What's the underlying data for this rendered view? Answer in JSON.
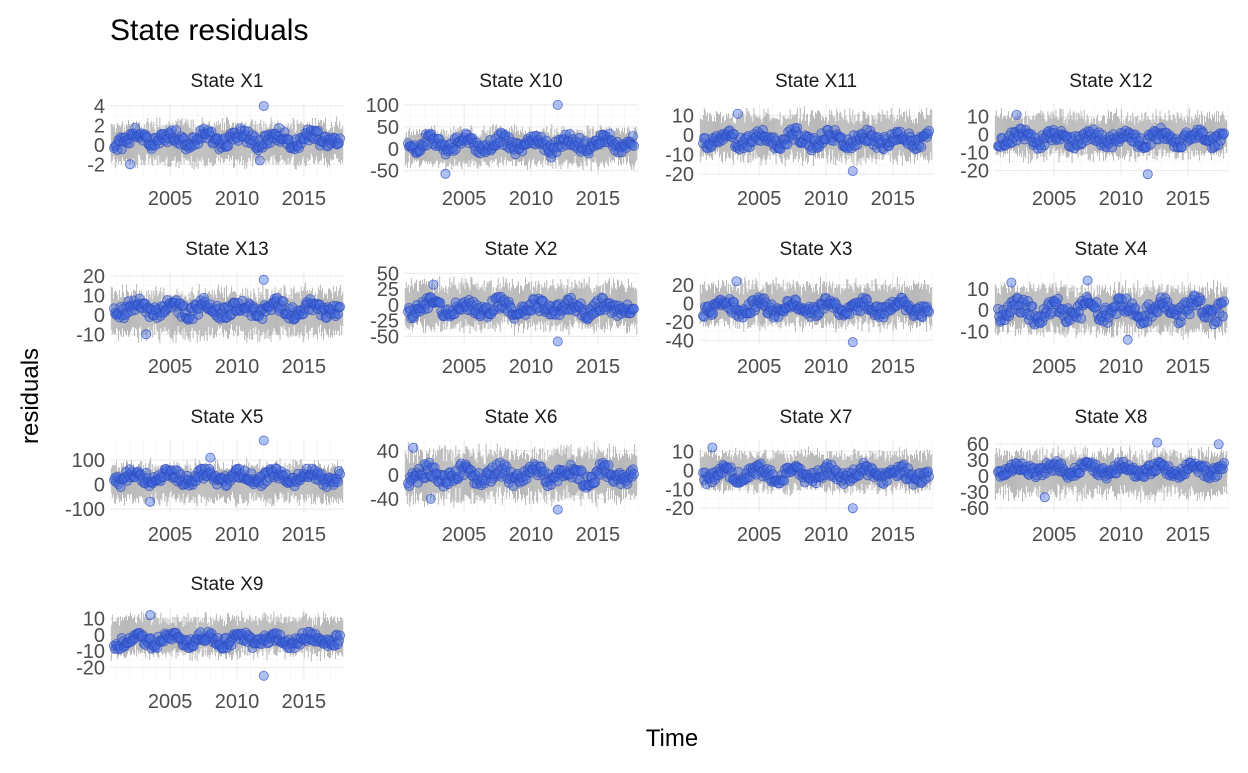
{
  "chart_data": {
    "type": "scatter",
    "title": "State residuals",
    "xlabel": "Time",
    "ylabel": "residuals",
    "grid": true,
    "xlim": [
      2000.5,
      2018
    ],
    "x_ticks": [
      2005,
      2010,
      2015
    ],
    "colors": {
      "points": "#4169e1",
      "band": "#bdbdbd",
      "grid": "#ebebeb"
    },
    "panels": [
      {
        "label": "State X1",
        "ylim": [
          -3.2,
          4.2
        ],
        "y_ticks": [
          -2,
          0,
          2,
          4
        ],
        "band": 2.3,
        "center": 0.6,
        "spread": 1.0,
        "outliers": [
          [
            2012,
            4
          ],
          [
            2002,
            -2
          ],
          [
            2011.7,
            -1.6
          ]
        ]
      },
      {
        "label": "State X10",
        "ylim": [
          -62,
          102
        ],
        "y_ticks": [
          -50,
          0,
          50,
          100
        ],
        "band": 45,
        "center": 12,
        "spread": 22,
        "outliers": [
          [
            2012,
            100
          ],
          [
            2003.6,
            -57
          ],
          [
            2011.5,
            -20
          ]
        ]
      },
      {
        "label": "State X11",
        "ylim": [
          -21,
          16
        ],
        "y_ticks": [
          -20,
          -10,
          0,
          10
        ],
        "band": 13,
        "center": -2,
        "spread": 5,
        "outliers": [
          [
            2003.4,
            11
          ],
          [
            2012,
            -18.5
          ]
        ]
      },
      {
        "label": "State X12",
        "ylim": [
          -23,
          17
        ],
        "y_ticks": [
          -20,
          -10,
          0,
          10
        ],
        "band": 13,
        "center": -2,
        "spread": 5,
        "outliers": [
          [
            2002.2,
            11
          ],
          [
            2012,
            -22
          ]
        ]
      },
      {
        "label": "State X13",
        "ylim": [
          -15,
          22
        ],
        "y_ticks": [
          -10,
          0,
          10,
          20
        ],
        "band": 13,
        "center": 3,
        "spread": 5,
        "outliers": [
          [
            2012,
            18
          ],
          [
            2003.2,
            -10
          ]
        ]
      },
      {
        "label": "State X2",
        "ylim": [
          -62,
          52
        ],
        "y_ticks": [
          -50,
          -25,
          0,
          25,
          50
        ],
        "band": 40,
        "center": -5,
        "spread": 15,
        "outliers": [
          [
            2002.7,
            32
          ],
          [
            2012,
            -58
          ]
        ]
      },
      {
        "label": "State X3",
        "ylim": [
          -44,
          34
        ],
        "y_ticks": [
          -40,
          -20,
          0,
          20
        ],
        "band": 25,
        "center": -5,
        "spread": 10,
        "outliers": [
          [
            2003.3,
            24
          ],
          [
            2012,
            -42
          ]
        ]
      },
      {
        "label": "State X4",
        "ylim": [
          -16,
          18
        ],
        "y_ticks": [
          -10,
          0,
          10
        ],
        "band": 12,
        "center": 0,
        "spread": 6,
        "outliers": [
          [
            2007.5,
            14
          ],
          [
            2001.8,
            13
          ],
          [
            2010.5,
            -14
          ]
        ]
      },
      {
        "label": "State X5",
        "ylim": [
          -112,
          182
        ],
        "y_ticks": [
          -100,
          0,
          100
        ],
        "band": 85,
        "center": 30,
        "spread": 35,
        "outliers": [
          [
            2012,
            180
          ],
          [
            2008,
            110
          ],
          [
            2003.5,
            -70
          ]
        ]
      },
      {
        "label": "State X6",
        "ylim": [
          -62,
          58
        ],
        "y_ticks": [
          -40,
          0,
          40
        ],
        "band": 45,
        "center": 0,
        "spread": 18,
        "outliers": [
          [
            2001.2,
            45
          ],
          [
            2012,
            -58
          ],
          [
            2002.5,
            -40
          ]
        ]
      },
      {
        "label": "State X7",
        "ylim": [
          -22,
          16
        ],
        "y_ticks": [
          -20,
          -10,
          0,
          10
        ],
        "band": 11,
        "center": -2,
        "spread": 5,
        "outliers": [
          [
            2001.5,
            12
          ],
          [
            2012,
            -20
          ]
        ]
      },
      {
        "label": "State X8",
        "ylim": [
          -68,
          68
        ],
        "y_ticks": [
          -60,
          -30,
          0,
          30,
          60
        ],
        "band": 45,
        "center": 12,
        "spread": 15,
        "outliers": [
          [
            2012.7,
            63
          ],
          [
            2017.3,
            60
          ],
          [
            2004.3,
            -40
          ]
        ]
      },
      {
        "label": "State X9",
        "ylim": [
          -27,
          17
        ],
        "y_ticks": [
          -20,
          -10,
          0,
          10
        ],
        "band": 13,
        "center": -3,
        "spread": 5,
        "outliers": [
          [
            2003.5,
            12
          ],
          [
            2012,
            -25
          ]
        ]
      }
    ]
  }
}
